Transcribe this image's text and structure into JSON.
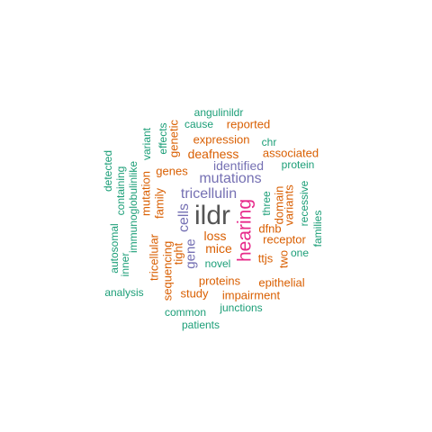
{
  "words": [
    {
      "text": "ildr",
      "color": "#555555",
      "weight": 100
    },
    {
      "text": "hearing",
      "color": "#e7298a",
      "weight": 60
    },
    {
      "text": "tricellulin",
      "color": "#7570b3",
      "weight": 45
    },
    {
      "text": "mutations",
      "color": "#7570b3",
      "weight": 45
    },
    {
      "text": "cells",
      "color": "#7570b3",
      "weight": 40
    },
    {
      "text": "gene",
      "color": "#7570b3",
      "weight": 38
    },
    {
      "text": "identified",
      "color": "#7570b3",
      "weight": 38
    },
    {
      "text": "deafness",
      "color": "#d95f02",
      "weight": 35
    },
    {
      "text": "loss",
      "color": "#d95f02",
      "weight": 35
    },
    {
      "text": "mice",
      "color": "#d95f02",
      "weight": 35
    },
    {
      "text": "genes",
      "color": "#d95f02",
      "weight": 30
    },
    {
      "text": "receptor",
      "color": "#d95f02",
      "weight": 30
    },
    {
      "text": "tight",
      "color": "#d95f02",
      "weight": 30
    },
    {
      "text": "family",
      "color": "#d95f02",
      "weight": 28
    },
    {
      "text": "proteins",
      "color": "#d95f02",
      "weight": 28
    },
    {
      "text": "mutation",
      "color": "#d95f02",
      "weight": 28
    },
    {
      "text": "expression",
      "color": "#d95f02",
      "weight": 25
    },
    {
      "text": "dfnb",
      "color": "#d95f02",
      "weight": 25
    },
    {
      "text": "impairment",
      "color": "#d95f02",
      "weight": 25
    },
    {
      "text": "study",
      "color": "#d95f02",
      "weight": 25
    },
    {
      "text": "sequencing",
      "color": "#d95f02",
      "weight": 25
    },
    {
      "text": "tricellular",
      "color": "#d95f02",
      "weight": 25
    },
    {
      "text": "domain",
      "color": "#d95f02",
      "weight": 25
    },
    {
      "text": "variants",
      "color": "#d95f02",
      "weight": 25
    },
    {
      "text": "ttjs",
      "color": "#d95f02",
      "weight": 25
    },
    {
      "text": "two",
      "color": "#d95f02",
      "weight": 25
    },
    {
      "text": "associated",
      "color": "#d95f02",
      "weight": 25
    },
    {
      "text": "reported",
      "color": "#d95f02",
      "weight": 25
    },
    {
      "text": "genetic",
      "color": "#d95f02",
      "weight": 25
    },
    {
      "text": "epithelial",
      "color": "#d95f02",
      "weight": 25
    },
    {
      "text": "angulinildr",
      "color": "#1b9e77",
      "weight": 20
    },
    {
      "text": "cause",
      "color": "#1b9e77",
      "weight": 20
    },
    {
      "text": "effects",
      "color": "#1b9e77",
      "weight": 20
    },
    {
      "text": "variant",
      "color": "#1b9e77",
      "weight": 20
    },
    {
      "text": "chr",
      "color": "#1b9e77",
      "weight": 20
    },
    {
      "text": "protein",
      "color": "#1b9e77",
      "weight": 20
    },
    {
      "text": "detected",
      "color": "#1b9e77",
      "weight": 20
    },
    {
      "text": "containing",
      "color": "#1b9e77",
      "weight": 20
    },
    {
      "text": "immunoglobulinlike",
      "color": "#1b9e77",
      "weight": 20
    },
    {
      "text": "autosomal",
      "color": "#1b9e77",
      "weight": 20
    },
    {
      "text": "inner",
      "color": "#1b9e77",
      "weight": 20
    },
    {
      "text": "three",
      "color": "#1b9e77",
      "weight": 20
    },
    {
      "text": "recessive",
      "color": "#1b9e77",
      "weight": 20
    },
    {
      "text": "families",
      "color": "#1b9e77",
      "weight": 20
    },
    {
      "text": "one",
      "color": "#1b9e77",
      "weight": 20
    },
    {
      "text": "novel",
      "color": "#1b9e77",
      "weight": 20
    },
    {
      "text": "analysis",
      "color": "#1b9e77",
      "weight": 20
    },
    {
      "text": "common",
      "color": "#1b9e77",
      "weight": 20
    },
    {
      "text": "junctions",
      "color": "#1b9e77",
      "weight": 20
    },
    {
      "text": "patients",
      "color": "#1b9e77",
      "weight": 20
    }
  ]
}
